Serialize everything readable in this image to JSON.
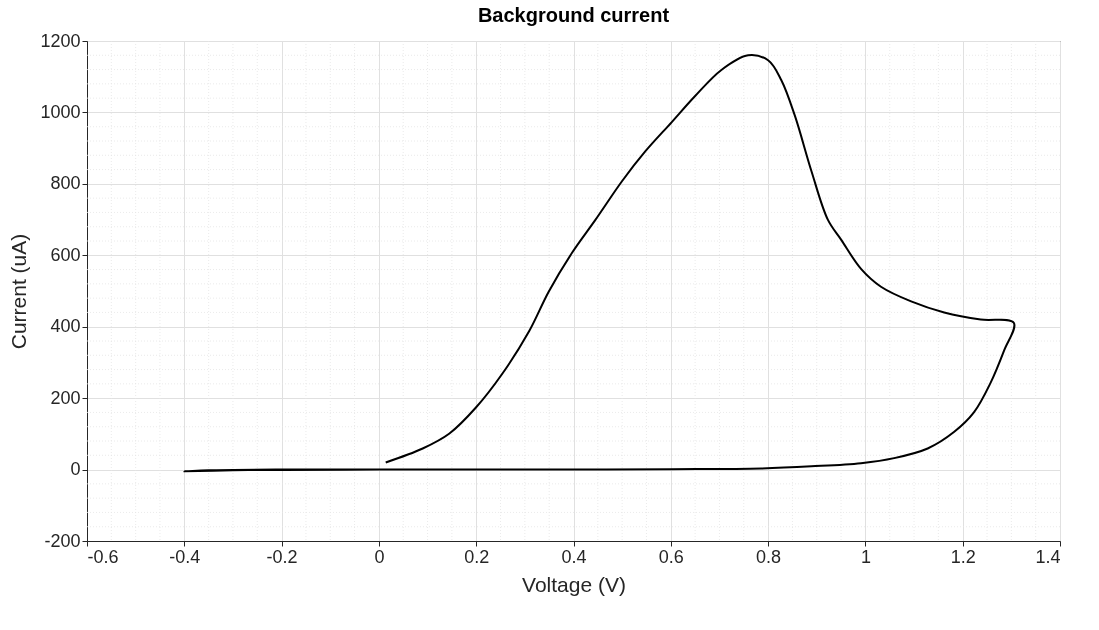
{
  "chart_data": {
    "type": "line",
    "title": "Background current",
    "xlabel": "Voltage (V)",
    "ylabel": "Current (uA)",
    "xlim": [
      -0.6,
      1.4
    ],
    "xticks": [
      -0.6,
      -0.4,
      -0.2,
      0,
      0.2,
      0.4,
      0.6,
      0.8,
      1,
      1.2,
      1.4
    ],
    "ylim": [
      -200,
      1200
    ],
    "yticks": [
      -200,
      0,
      200,
      400,
      600,
      800,
      1000,
      1200
    ],
    "grid": true,
    "marker": "none",
    "line_style": "solid",
    "series": [
      {
        "color": "#000000",
        "x": [
          0.014,
          0.09,
          0.145,
          0.199,
          0.254,
          0.309,
          0.349,
          0.397,
          0.445,
          0.5,
          0.547,
          0.602,
          0.65,
          0.704,
          0.759,
          0.8,
          0.827,
          0.855,
          0.889,
          0.923,
          0.95,
          0.991,
          1.032,
          1.094,
          1.162,
          1.237,
          1.305,
          1.285,
          1.257,
          1.223,
          1.182,
          1.128,
          1.059,
          0.991,
          0.889,
          0.786,
          0.6,
          0.4,
          0.2,
          0,
          -0.2,
          -0.3,
          -0.4,
          -0.35,
          -0.2,
          0
        ],
        "values": [
          20,
          59,
          101,
          173,
          269,
          388,
          498,
          607,
          699,
          808,
          890,
          973,
          1046,
          1119,
          1160,
          1146,
          1091,
          991,
          836,
          699,
          644,
          562,
          512,
          471,
          440,
          420,
          411,
          333,
          242,
          160,
          105,
          59,
          32,
          18,
          9,
          3,
          1,
          0,
          0,
          0,
          -1,
          -2,
          -5,
          -2,
          0,
          0
        ]
      }
    ]
  }
}
